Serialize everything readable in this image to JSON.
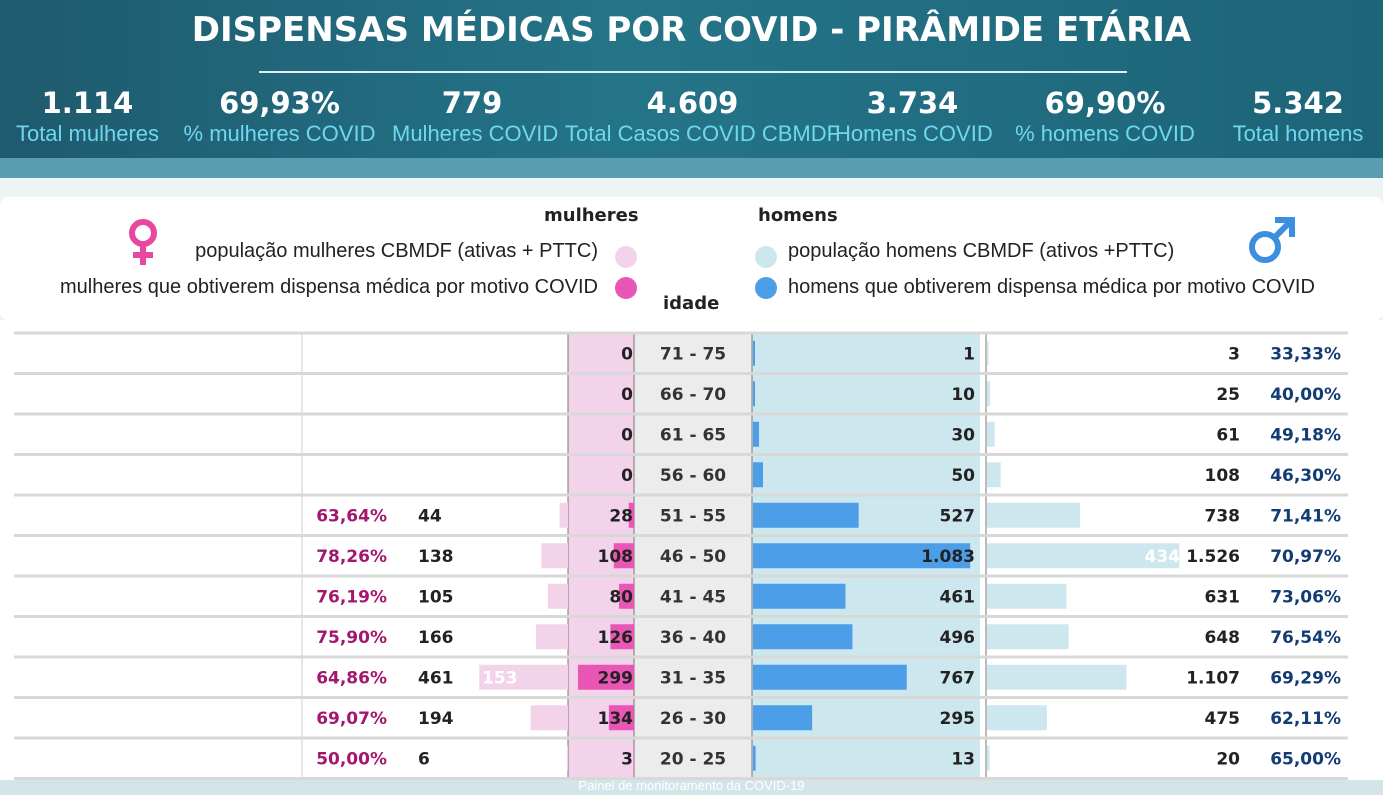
{
  "header": {
    "title": "DISPENSAS MÉDICAS POR COVID - PIRÂMIDE ETÁRIA",
    "kpis": [
      {
        "value": "1.114",
        "label": "Total mulheres"
      },
      {
        "value": "69,93%",
        "label": "% mulheres COVID"
      },
      {
        "value": "779",
        "label": "Mulheres COVID"
      },
      {
        "value": "4.609",
        "label": "Total Casos COVID CBMDF"
      },
      {
        "value": "3.734",
        "label": "Homens COVID"
      },
      {
        "value": "69,90%",
        "label": "% homens COVID"
      },
      {
        "value": "5.342",
        "label": "Total homens"
      }
    ]
  },
  "legend": {
    "women_title": "mulheres",
    "men_title": "homens",
    "age_title": "idade",
    "women_population": "população mulheres CBMDF (ativas + PTTC)",
    "women_covid": "mulheres que obtiverem dispensa médica por motivo COVID",
    "men_population": "população homens CBMDF (ativos +PTTC)",
    "men_covid": "homens que obtiverem dispensa médica por motivo COVID",
    "female_icon": "female-symbol-icon",
    "male_icon": "male-symbol-icon"
  },
  "colors": {
    "women_population": "#f2d3ea",
    "women_covid": "#ea56b6",
    "men_population": "#cde7ef",
    "men_covid": "#4d9ee8",
    "women_pct": "#a3186e",
    "men_pct": "#123c73"
  },
  "chart_data": {
    "type": "bar",
    "categories": [
      "71 - 75",
      "66 - 70",
      "61 - 65",
      "56 - 60",
      "51 - 55",
      "46 - 50",
      "41 - 45",
      "36 - 40",
      "31 - 35",
      "26 - 30",
      "20 - 25"
    ],
    "series": [
      {
        "name": "população mulheres CBMDF (ativas + PTTC)",
        "values": [
          null,
          null,
          null,
          null,
          44,
          138,
          105,
          166,
          461,
          194,
          6
        ]
      },
      {
        "name": "mulheres que obtiverem dispensa médica por motivo COVID",
        "values": [
          0,
          0,
          0,
          0,
          28,
          108,
          80,
          126,
          299,
          134,
          3
        ]
      },
      {
        "name": "homens que obtiverem dispensa médica por motivo COVID",
        "values": [
          1,
          10,
          30,
          50,
          527,
          1083,
          461,
          496,
          767,
          295,
          13
        ]
      },
      {
        "name": "população homens CBMDF (ativos +PTTC)",
        "values": [
          3,
          25,
          61,
          108,
          738,
          1526,
          631,
          648,
          1107,
          475,
          20
        ]
      }
    ],
    "display": {
      "women_pct": [
        "",
        "",
        "",
        "",
        "63,64%",
        "78,26%",
        "76,19%",
        "75,90%",
        "64,86%",
        "69,07%",
        "50,00%"
      ],
      "women_total": [
        "",
        "",
        "",
        "",
        "44",
        "138",
        "105",
        "166",
        "461",
        "194",
        "6"
      ],
      "women_covid": [
        "0",
        "0",
        "0",
        "0",
        "28",
        "108",
        "80",
        "126",
        "299",
        "134",
        "3"
      ],
      "men_covid": [
        "1",
        "10",
        "30",
        "50",
        "527",
        "1.083",
        "461",
        "496",
        "767",
        "295",
        "13"
      ],
      "men_total": [
        "3",
        "25",
        "61",
        "108",
        "738",
        "1.526",
        "631",
        "648",
        "1.107",
        "475",
        "20"
      ],
      "men_pct": [
        "33,33%",
        "40,00%",
        "49,18%",
        "46,30%",
        "71,41%",
        "70,97%",
        "73,06%",
        "76,54%",
        "69,29%",
        "62,11%",
        "65,00%"
      ],
      "women_bar_overlay": [
        "",
        "",
        "",
        "",
        "",
        "",
        "",
        "",
        "153",
        "",
        ""
      ],
      "men_bar_overlay": [
        "",
        "",
        "",
        "",
        "",
        "434",
        "",
        "",
        "",
        "",
        ""
      ]
    }
  },
  "footer": {
    "caption": "Painel de monitoramento da COVID-19"
  }
}
